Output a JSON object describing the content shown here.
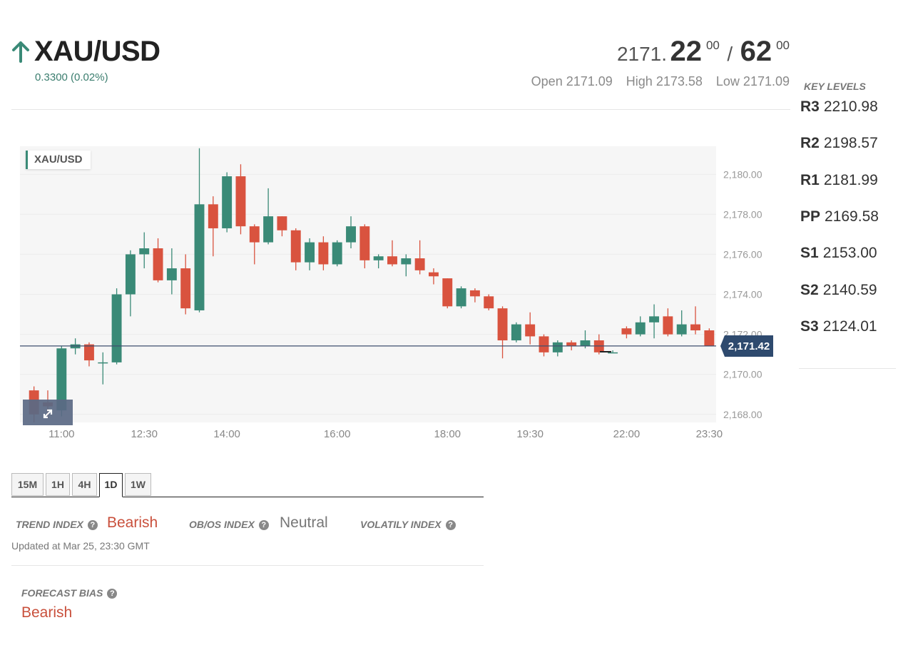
{
  "instrument": {
    "symbol": "XAU/USD",
    "direction_icon": "arrow-up-icon",
    "change": "0.3300 (0.02%)"
  },
  "quote": {
    "bid_int": "2171.",
    "bid_main": "22",
    "bid_sup": "00",
    "separator": "/",
    "ask_main": "62",
    "ask_sup": "00",
    "open": "Open 2171.09",
    "high": "High 2173.58",
    "low": "Low 2171.09"
  },
  "key_levels": {
    "title": "KEY LEVELS",
    "items": [
      {
        "name": "R3",
        "value": "2210.98"
      },
      {
        "name": "R2",
        "value": "2198.57"
      },
      {
        "name": "R1",
        "value": "2181.99"
      },
      {
        "name": "PP",
        "value": "2169.58"
      },
      {
        "name": "S1",
        "value": "2153.00"
      },
      {
        "name": "S2",
        "value": "2140.59"
      },
      {
        "name": "S3",
        "value": "2124.01"
      }
    ]
  },
  "chart_data": {
    "type": "candlestick",
    "title": "XAU/USD",
    "last_price_label": "2,171.42",
    "last_price": 2171.42,
    "ylim": [
      2167.6,
      2181.4
    ],
    "y_ticks": [
      {
        "value": 2168,
        "label": "2,168.00"
      },
      {
        "value": 2170,
        "label": "2,170.00"
      },
      {
        "value": 2172,
        "label": "2,172.00"
      },
      {
        "value": 2174,
        "label": "2,174.00"
      },
      {
        "value": 2176,
        "label": "2,176.00"
      },
      {
        "value": 2178,
        "label": "2,178.00"
      },
      {
        "value": 2180,
        "label": "2,180.00"
      }
    ],
    "x_ticks": [
      {
        "index": 2,
        "label": "11:00"
      },
      {
        "index": 8,
        "label": "12:30"
      },
      {
        "index": 14,
        "label": "14:00"
      },
      {
        "index": 22,
        "label": "16:00"
      },
      {
        "index": 30,
        "label": "18:00"
      },
      {
        "index": 36,
        "label": "19:30"
      },
      {
        "index": 43,
        "label": "22:00"
      },
      {
        "index": 49,
        "label": "23:30"
      }
    ],
    "colors": {
      "up": "#3a8a77",
      "down": "#d9533f",
      "last_line": "#3d4f6e",
      "tag": "#2e4a6e"
    },
    "candles": [
      {
        "o": 2169.2,
        "h": 2169.4,
        "l": 2167.6,
        "c": 2168.0
      },
      {
        "o": 2168.6,
        "h": 2169.2,
        "l": 2167.8,
        "c": 2168.4
      },
      {
        "o": 2168.2,
        "h": 2171.4,
        "l": 2167.9,
        "c": 2171.3
      },
      {
        "o": 2171.3,
        "h": 2171.8,
        "l": 2171.0,
        "c": 2171.5
      },
      {
        "o": 2171.5,
        "h": 2171.6,
        "l": 2170.4,
        "c": 2170.7
      },
      {
        "o": 2170.6,
        "h": 2171.1,
        "l": 2169.5,
        "c": 2170.6
      },
      {
        "o": 2170.6,
        "h": 2174.3,
        "l": 2170.5,
        "c": 2174.0
      },
      {
        "o": 2174.0,
        "h": 2176.2,
        "l": 2172.9,
        "c": 2176.0
      },
      {
        "o": 2176.0,
        "h": 2177.1,
        "l": 2175.3,
        "c": 2176.3
      },
      {
        "o": 2176.3,
        "h": 2176.8,
        "l": 2174.6,
        "c": 2174.7
      },
      {
        "o": 2174.7,
        "h": 2176.3,
        "l": 2174.0,
        "c": 2175.3
      },
      {
        "o": 2175.3,
        "h": 2176.0,
        "l": 2173.0,
        "c": 2173.3
      },
      {
        "o": 2173.2,
        "h": 2181.3,
        "l": 2173.1,
        "c": 2178.5
      },
      {
        "o": 2178.5,
        "h": 2178.9,
        "l": 2175.9,
        "c": 2177.3
      },
      {
        "o": 2177.3,
        "h": 2180.1,
        "l": 2177.1,
        "c": 2179.9
      },
      {
        "o": 2179.9,
        "h": 2180.5,
        "l": 2177.0,
        "c": 2177.4
      },
      {
        "o": 2177.4,
        "h": 2177.5,
        "l": 2175.5,
        "c": 2176.6
      },
      {
        "o": 2176.6,
        "h": 2179.3,
        "l": 2176.5,
        "c": 2177.9
      },
      {
        "o": 2177.9,
        "h": 2177.9,
        "l": 2176.9,
        "c": 2177.2
      },
      {
        "o": 2177.2,
        "h": 2177.3,
        "l": 2175.2,
        "c": 2175.6
      },
      {
        "o": 2175.6,
        "h": 2176.8,
        "l": 2175.2,
        "c": 2176.6
      },
      {
        "o": 2176.6,
        "h": 2176.9,
        "l": 2175.2,
        "c": 2175.5
      },
      {
        "o": 2175.5,
        "h": 2176.7,
        "l": 2175.4,
        "c": 2176.6
      },
      {
        "o": 2176.6,
        "h": 2177.9,
        "l": 2176.3,
        "c": 2177.4
      },
      {
        "o": 2177.4,
        "h": 2177.5,
        "l": 2175.3,
        "c": 2175.7
      },
      {
        "o": 2175.7,
        "h": 2176.0,
        "l": 2175.3,
        "c": 2175.9
      },
      {
        "o": 2175.9,
        "h": 2176.7,
        "l": 2175.4,
        "c": 2175.5
      },
      {
        "o": 2175.5,
        "h": 2176.0,
        "l": 2174.9,
        "c": 2175.8
      },
      {
        "o": 2175.8,
        "h": 2176.7,
        "l": 2175.0,
        "c": 2175.2
      },
      {
        "o": 2175.1,
        "h": 2175.3,
        "l": 2174.5,
        "c": 2174.9
      },
      {
        "o": 2174.8,
        "h": 2174.8,
        "l": 2173.3,
        "c": 2173.4
      },
      {
        "o": 2173.4,
        "h": 2174.4,
        "l": 2173.3,
        "c": 2174.3
      },
      {
        "o": 2174.2,
        "h": 2174.3,
        "l": 2173.6,
        "c": 2173.9
      },
      {
        "o": 2173.9,
        "h": 2174.0,
        "l": 2173.2,
        "c": 2173.3
      },
      {
        "o": 2173.3,
        "h": 2173.4,
        "l": 2170.8,
        "c": 2171.7
      },
      {
        "o": 2171.7,
        "h": 2172.6,
        "l": 2171.6,
        "c": 2172.5
      },
      {
        "o": 2172.5,
        "h": 2173.1,
        "l": 2171.5,
        "c": 2171.9
      },
      {
        "o": 2171.9,
        "h": 2172.0,
        "l": 2170.9,
        "c": 2171.1
      },
      {
        "o": 2171.1,
        "h": 2171.7,
        "l": 2170.9,
        "c": 2171.6
      },
      {
        "o": 2171.6,
        "h": 2171.7,
        "l": 2171.2,
        "c": 2171.4
      },
      {
        "o": 2171.4,
        "h": 2172.2,
        "l": 2171.3,
        "c": 2171.7
      },
      {
        "o": 2171.7,
        "h": 2172.0,
        "l": 2171.0,
        "c": 2171.1
      },
      {
        "o": 2171.1,
        "h": 2171.2,
        "l": 2171.1,
        "c": 2171.1
      },
      {
        "o": 2172.3,
        "h": 2172.4,
        "l": 2171.8,
        "c": 2172.0
      },
      {
        "o": 2172.0,
        "h": 2172.9,
        "l": 2171.9,
        "c": 2172.6
      },
      {
        "o": 2172.6,
        "h": 2173.5,
        "l": 2171.8,
        "c": 2172.9
      },
      {
        "o": 2172.9,
        "h": 2173.3,
        "l": 2171.9,
        "c": 2172.0
      },
      {
        "o": 2172.0,
        "h": 2173.2,
        "l": 2171.9,
        "c": 2172.5
      },
      {
        "o": 2172.5,
        "h": 2173.4,
        "l": 2172.0,
        "c": 2172.2
      },
      {
        "o": 2172.2,
        "h": 2172.3,
        "l": 2171.4,
        "c": 2171.4
      }
    ]
  },
  "timeframes": {
    "items": [
      "15M",
      "1H",
      "4H",
      "1D",
      "1W"
    ],
    "active": "1D"
  },
  "indices": {
    "trend_label": "TREND INDEX",
    "trend_value": "Bearish",
    "obos_label": "OB/OS INDEX",
    "obos_value": "Neutral",
    "volatility_label": "VOLATILY INDEX",
    "help_glyph": "?",
    "updated": "Updated at Mar 25, 23:30 GMT"
  },
  "forecast": {
    "label": "FORECAST BIAS",
    "value": "Bearish"
  }
}
